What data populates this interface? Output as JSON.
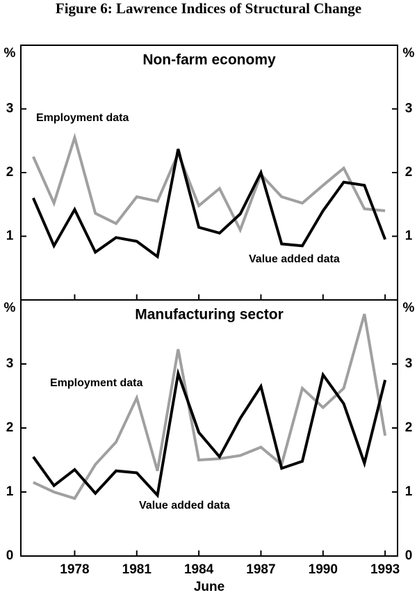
{
  "figure_title": "Figure 6: Lawrence Indices of Structural Change",
  "chart_data": [
    {
      "type": "line",
      "title": "Non-farm economy",
      "y_unit": "%",
      "x": [
        1976,
        1977,
        1978,
        1979,
        1980,
        1981,
        1982,
        1983,
        1984,
        1985,
        1986,
        1987,
        1988,
        1989,
        1990,
        1991,
        1992,
        1993
      ],
      "series": [
        {
          "name": "Value added data",
          "color": "#000000",
          "values": [
            1.6,
            0.85,
            1.42,
            0.75,
            0.98,
            0.92,
            0.68,
            2.37,
            1.14,
            1.05,
            1.35,
            2.0,
            0.88,
            0.85,
            1.4,
            1.85,
            1.8,
            0.95
          ]
        },
        {
          "name": "Employment data",
          "color": "#a0a0a0",
          "values": [
            2.25,
            1.52,
            2.55,
            1.36,
            1.2,
            1.62,
            1.55,
            2.3,
            1.48,
            1.75,
            1.1,
            1.97,
            1.62,
            1.52,
            1.8,
            2.07,
            1.43,
            1.4
          ]
        }
      ],
      "xlim": [
        1975.4,
        1993.6
      ],
      "xticks": [
        1978,
        1981,
        1984,
        1987,
        1990,
        1993
      ],
      "ylim": [
        0,
        4
      ],
      "yticks": [
        1,
        2,
        3
      ]
    },
    {
      "type": "line",
      "title": "Manufacturing sector",
      "y_unit": "%",
      "xlabel": "June",
      "x": [
        1976,
        1977,
        1978,
        1979,
        1980,
        1981,
        1982,
        1983,
        1984,
        1985,
        1986,
        1987,
        1988,
        1989,
        1990,
        1991,
        1992,
        1993
      ],
      "series": [
        {
          "name": "Value added data",
          "color": "#000000",
          "values": [
            1.55,
            1.1,
            1.35,
            0.98,
            1.33,
            1.3,
            0.95,
            2.85,
            1.93,
            1.55,
            2.15,
            2.65,
            1.37,
            1.48,
            2.83,
            2.38,
            1.45,
            2.75
          ]
        },
        {
          "name": "Employment data",
          "color": "#a0a0a0",
          "values": [
            1.15,
            1.0,
            0.9,
            1.43,
            1.78,
            2.47,
            1.33,
            3.23,
            1.5,
            1.52,
            1.57,
            1.7,
            1.43,
            2.62,
            2.32,
            2.62,
            3.78,
            1.88
          ]
        }
      ],
      "xlim": [
        1975.4,
        1993.6
      ],
      "xticks": [
        1978,
        1981,
        1984,
        1987,
        1990,
        1993
      ],
      "ylim": [
        0,
        4
      ],
      "yticks": [
        0,
        1,
        2,
        3
      ]
    }
  ]
}
